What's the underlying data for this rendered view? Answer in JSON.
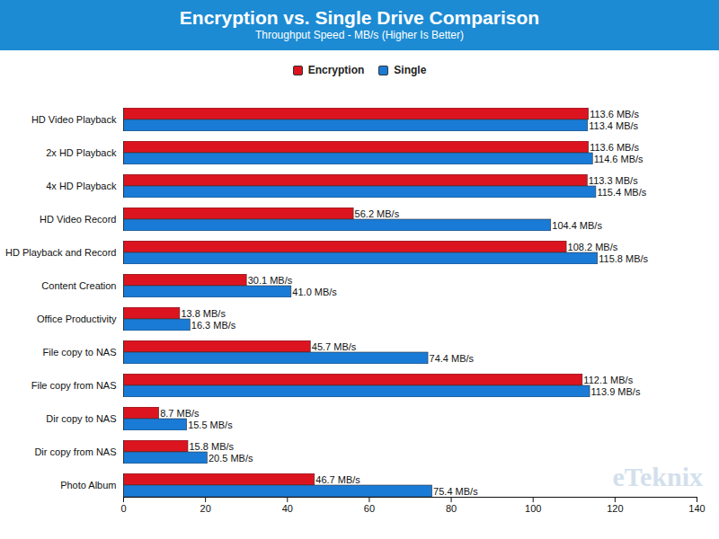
{
  "chart_data": {
    "type": "bar",
    "orientation": "horizontal",
    "title": "Encryption vs. Single Drive Comparison",
    "subtitle": "Throughput Speed - MB/s (Higher Is Better)",
    "categories": [
      "HD Video Playback",
      "2x HD Playback",
      "4x HD Playback",
      "HD Video Record",
      "HD Playback and Record",
      "Content Creation",
      "Office Productivity",
      "File copy to NAS",
      "File copy from NAS",
      "Dir copy to NAS",
      "Dir copy from NAS",
      "Photo Album"
    ],
    "series": [
      {
        "name": "Encryption",
        "color": "#dc1420",
        "values": [
          113.6,
          113.6,
          113.3,
          56.2,
          108.2,
          30.1,
          13.8,
          45.7,
          112.1,
          8.7,
          15.8,
          46.7
        ],
        "value_labels": [
          "113.6 MB/s",
          "113.6 MB/s",
          "113.3 MB/s",
          "56.2 MB/s",
          "108.2 MB/s",
          "30.1 MB/s",
          "13.8 MB/s",
          "45.7 MB/s",
          "112.1 MB/s",
          "8.7 MB/s",
          "15.8 MB/s",
          "46.7 MB/s"
        ]
      },
      {
        "name": "Single",
        "color": "#1a7bd6",
        "values": [
          113.4,
          114.6,
          115.4,
          104.4,
          115.8,
          41.0,
          16.3,
          74.4,
          113.9,
          15.5,
          20.5,
          75.4
        ],
        "value_labels": [
          "113.4 MB/s",
          "114.6 MB/s",
          "115.4 MB/s",
          "104.4 MB/s",
          "115.8 MB/s",
          "41.0 MB/s",
          "16.3 MB/s",
          "74.4 MB/s",
          "113.9 MB/s",
          "15.5 MB/s",
          "20.5 MB/s",
          "75.4 MB/s"
        ]
      }
    ],
    "xlim": [
      0,
      140
    ],
    "xticks": [
      0,
      20,
      40,
      60,
      80,
      100,
      120,
      140
    ],
    "grid": false,
    "legend": "top",
    "data_labels": true,
    "annotations": [
      "eTeknix"
    ]
  }
}
